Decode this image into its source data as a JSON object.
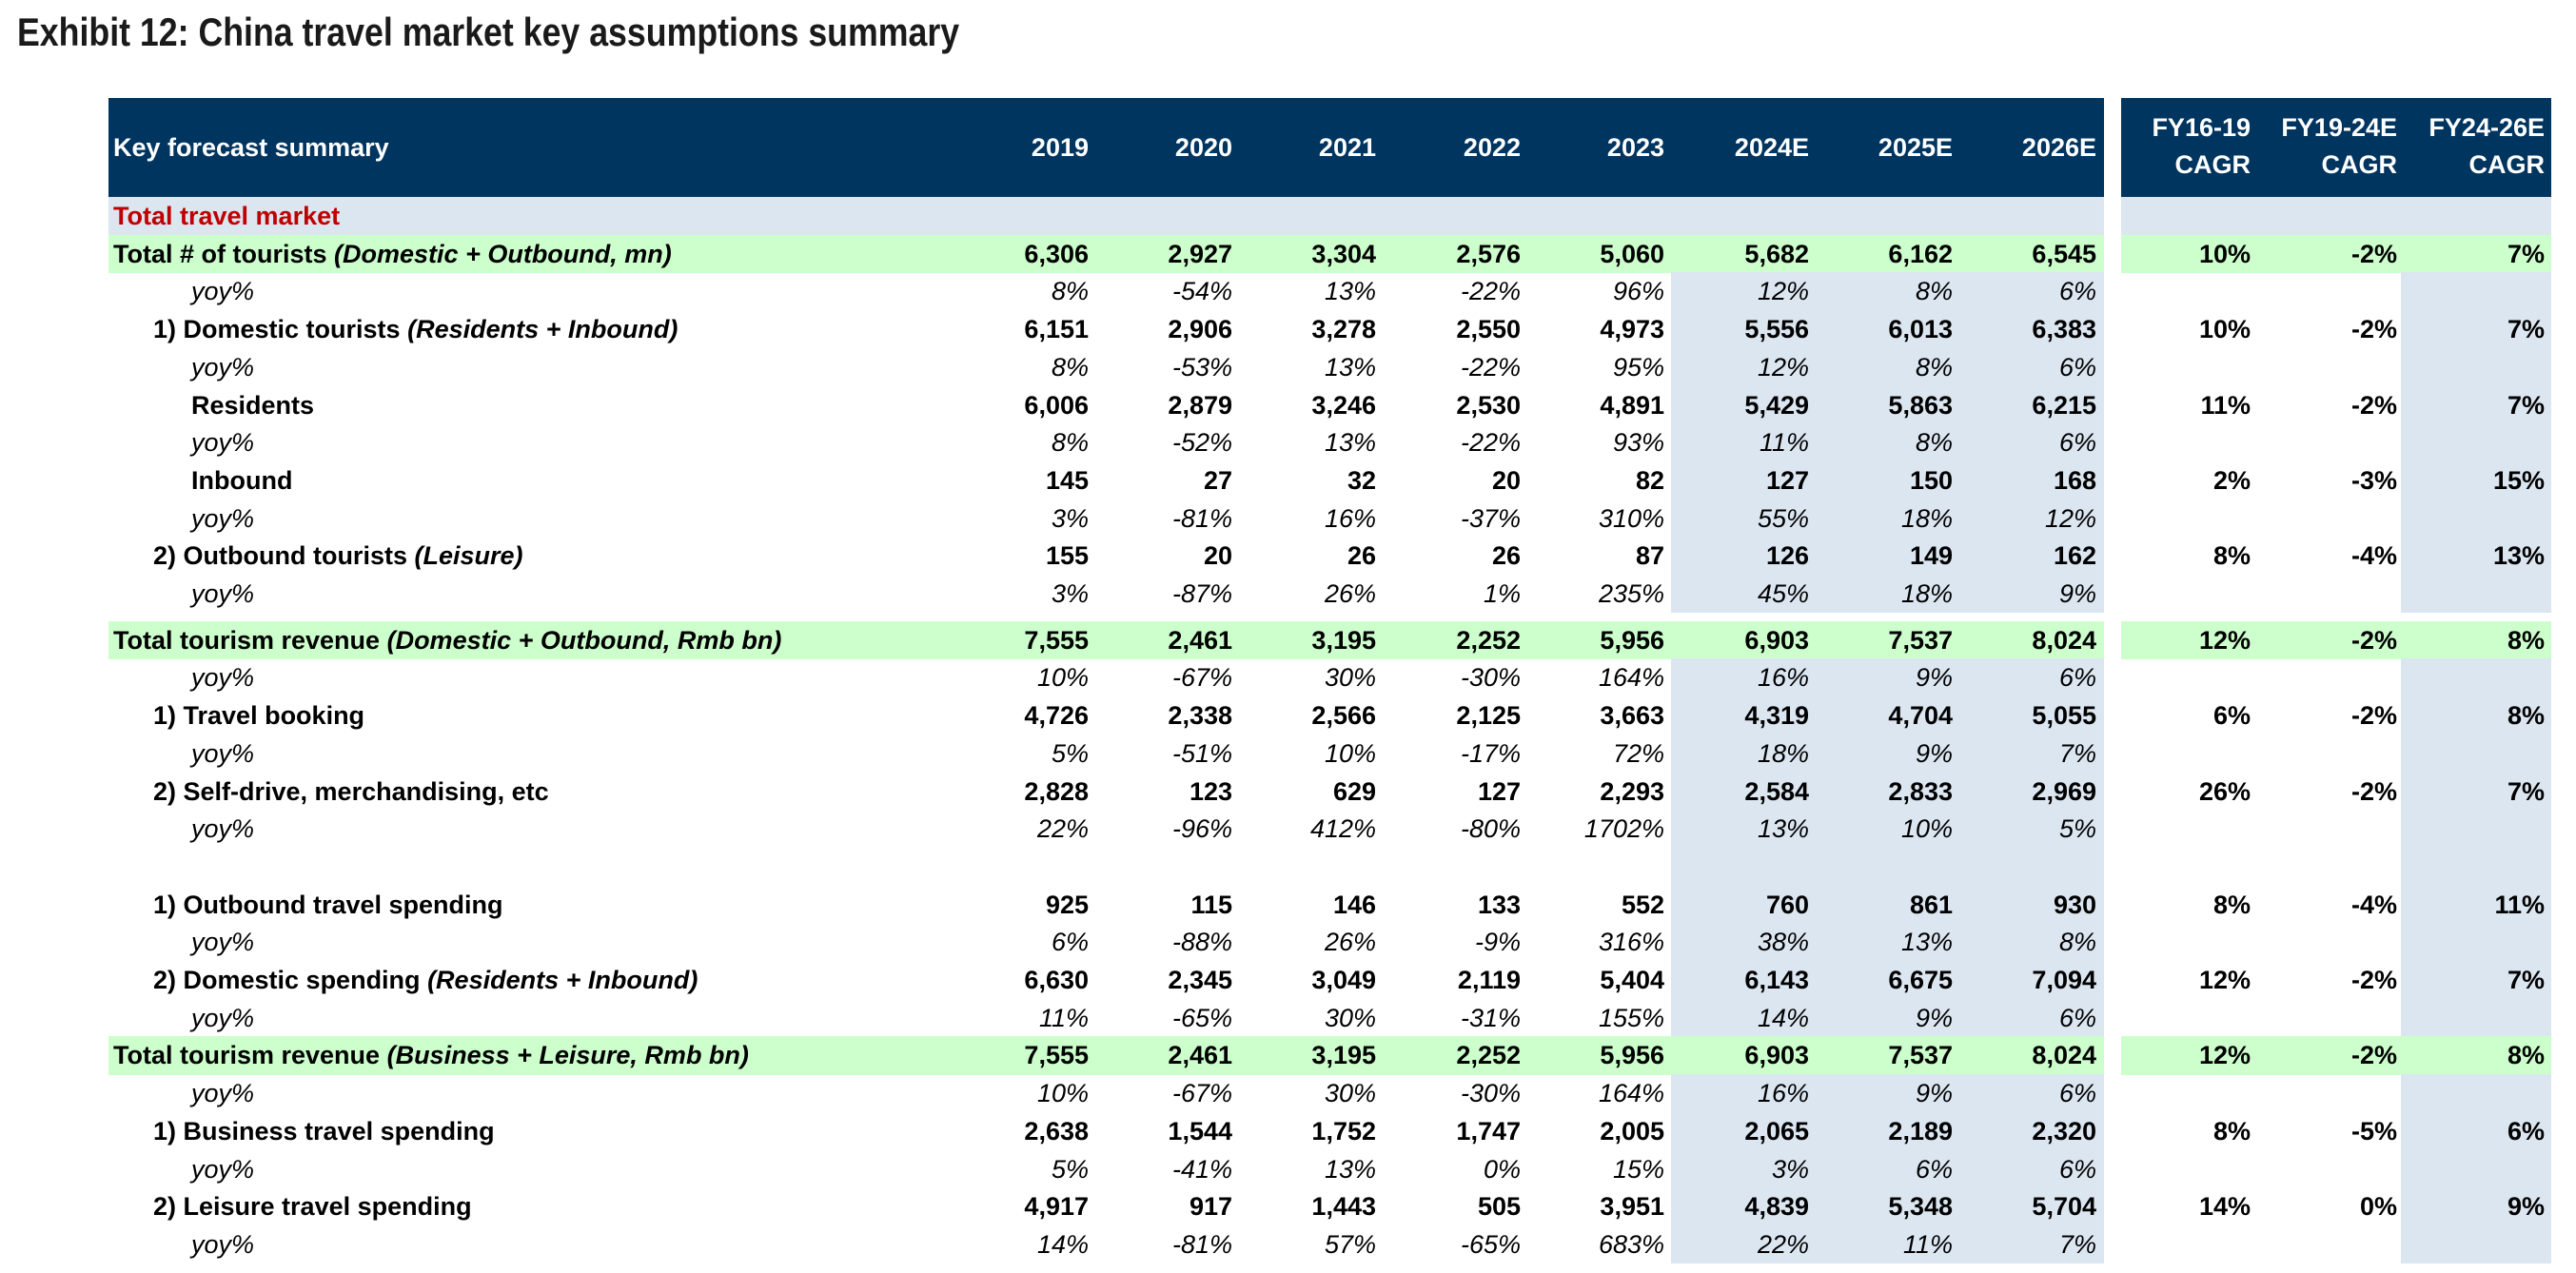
{
  "header": {
    "title": "Exhibit 12: China travel market key assumptions summary"
  },
  "table": {
    "label": "Key forecast summary",
    "years": [
      "2019",
      "2020",
      "2021",
      "2022",
      "2023",
      "2024E",
      "2025E",
      "2026E"
    ],
    "cagr": [
      [
        "FY16-19",
        "CAGR"
      ],
      [
        "FY19-24E",
        "CAGR"
      ],
      [
        "FY24-26E",
        "CAGR"
      ]
    ],
    "blocks": [
      {
        "section": "Total travel market",
        "total": {
          "label": "Total # of tourists",
          "note": "(Domestic + Outbound, mn)",
          "values": [
            "6,306",
            "2,927",
            "3,304",
            "2,576",
            "5,060",
            "5,682",
            "6,162",
            "6,545"
          ],
          "cagr": [
            "10%",
            "-2%",
            "7%"
          ],
          "yoy": {
            "label": "yoy%",
            "values": [
              "8%",
              "-54%",
              "13%",
              "-22%",
              "96%",
              "12%",
              "8%",
              "6%"
            ]
          }
        },
        "items": [
          {
            "label": "1) Domestic tourists",
            "note": "(Residents + Inbound)",
            "values": [
              "6,151",
              "2,906",
              "3,278",
              "2,550",
              "4,973",
              "5,556",
              "6,013",
              "6,383"
            ],
            "cagr": [
              "10%",
              "-2%",
              "7%"
            ],
            "yoy": {
              "label": "yoy%",
              "values": [
                "8%",
                "-53%",
                "13%",
                "-22%",
                "95%",
                "12%",
                "8%",
                "6%"
              ]
            },
            "items": [
              {
                "label": "Residents",
                "values": [
                  "6,006",
                  "2,879",
                  "3,246",
                  "2,530",
                  "4,891",
                  "5,429",
                  "5,863",
                  "6,215"
                ],
                "cagr": [
                  "11%",
                  "-2%",
                  "7%"
                ],
                "yoy": {
                  "label": "yoy%",
                  "values": [
                    "8%",
                    "-52%",
                    "13%",
                    "-22%",
                    "93%",
                    "11%",
                    "8%",
                    "6%"
                  ]
                }
              },
              {
                "label": "Inbound",
                "values": [
                  "145",
                  "27",
                  "32",
                  "20",
                  "82",
                  "127",
                  "150",
                  "168"
                ],
                "cagr": [
                  "2%",
                  "-3%",
                  "15%"
                ],
                "yoy": {
                  "label": "yoy%",
                  "values": [
                    "3%",
                    "-81%",
                    "16%",
                    "-37%",
                    "310%",
                    "55%",
                    "18%",
                    "12%"
                  ]
                }
              }
            ]
          },
          {
            "label": "2) Outbound tourists",
            "note": "(Leisure)",
            "values": [
              "155",
              "20",
              "26",
              "26",
              "87",
              "126",
              "149",
              "162"
            ],
            "cagr": [
              "8%",
              "-4%",
              "13%"
            ],
            "yoy": {
              "label": "yoy%",
              "values": [
                "3%",
                "-87%",
                "26%",
                "1%",
                "235%",
                "45%",
                "18%",
                "9%"
              ]
            }
          }
        ]
      },
      {
        "total": {
          "label": "Total tourism revenue",
          "note": "(Domestic + Outbound, Rmb bn)",
          "values": [
            "7,555",
            "2,461",
            "3,195",
            "2,252",
            "5,956",
            "6,903",
            "7,537",
            "8,024"
          ],
          "cagr": [
            "12%",
            "-2%",
            "8%"
          ],
          "yoy": {
            "label": "yoy%",
            "values": [
              "10%",
              "-67%",
              "30%",
              "-30%",
              "164%",
              "16%",
              "9%",
              "6%"
            ]
          }
        },
        "items": [
          {
            "label": "1) Travel booking",
            "values": [
              "4,726",
              "2,338",
              "2,566",
              "2,125",
              "3,663",
              "4,319",
              "4,704",
              "5,055"
            ],
            "cagr": [
              "6%",
              "-2%",
              "8%"
            ],
            "yoy": {
              "label": "yoy%",
              "values": [
                "5%",
                "-51%",
                "10%",
                "-17%",
                "72%",
                "18%",
                "9%",
                "7%"
              ]
            }
          },
          {
            "label": "2) Self-drive, merchandising, etc",
            "values": [
              "2,828",
              "123",
              "629",
              "127",
              "2,293",
              "2,584",
              "2,833",
              "2,969"
            ],
            "cagr": [
              "26%",
              "-2%",
              "7%"
            ],
            "yoy": {
              "label": "yoy%",
              "values": [
                "22%",
                "-96%",
                "412%",
                "-80%",
                "1702%",
                "13%",
                "10%",
                "5%"
              ]
            }
          }
        ]
      },
      {
        "items": [
          {
            "label": "1) Outbound travel spending",
            "values": [
              "925",
              "115",
              "146",
              "133",
              "552",
              "760",
              "861",
              "930"
            ],
            "cagr": [
              "8%",
              "-4%",
              "11%"
            ],
            "yoy": {
              "label": "yoy%",
              "values": [
                "6%",
                "-88%",
                "26%",
                "-9%",
                "316%",
                "38%",
                "13%",
                "8%"
              ]
            }
          },
          {
            "label": "2) Domestic spending",
            "note": "(Residents + Inbound)",
            "values": [
              "6,630",
              "2,345",
              "3,049",
              "2,119",
              "5,404",
              "6,143",
              "6,675",
              "7,094"
            ],
            "cagr": [
              "12%",
              "-2%",
              "7%"
            ],
            "yoy": {
              "label": "yoy%",
              "values": [
                "11%",
                "-65%",
                "30%",
                "-31%",
                "155%",
                "14%",
                "9%",
                "6%"
              ]
            }
          }
        ]
      },
      {
        "total": {
          "label": "Total tourism revenue",
          "note": "(Business + Leisure, Rmb bn)",
          "values": [
            "7,555",
            "2,461",
            "3,195",
            "2,252",
            "5,956",
            "6,903",
            "7,537",
            "8,024"
          ],
          "cagr": [
            "12%",
            "-2%",
            "8%"
          ],
          "yoy": {
            "label": "yoy%",
            "values": [
              "10%",
              "-67%",
              "30%",
              "-30%",
              "164%",
              "16%",
              "9%",
              "6%"
            ]
          }
        },
        "items": [
          {
            "label": "1) Business travel spending",
            "values": [
              "2,638",
              "1,544",
              "1,752",
              "1,747",
              "2,005",
              "2,065",
              "2,189",
              "2,320"
            ],
            "cagr": [
              "8%",
              "-5%",
              "6%"
            ],
            "yoy": {
              "label": "yoy%",
              "values": [
                "5%",
                "-41%",
                "13%",
                "0%",
                "15%",
                "3%",
                "6%",
                "6%"
              ]
            }
          },
          {
            "label": "2) Leisure travel spending",
            "values": [
              "4,917",
              "917",
              "1,443",
              "505",
              "3,951",
              "4,839",
              "5,348",
              "5,704"
            ],
            "cagr": [
              "14%",
              "0%",
              "9%"
            ],
            "yoy": {
              "label": "yoy%",
              "values": [
                "14%",
                "-81%",
                "57%",
                "-65%",
                "683%",
                "22%",
                "11%",
                "7%"
              ]
            }
          }
        ]
      }
    ]
  }
}
